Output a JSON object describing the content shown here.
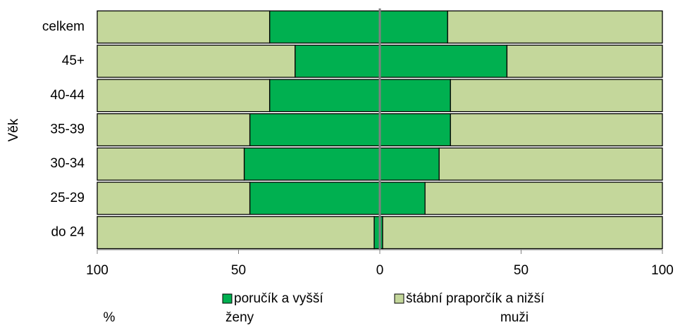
{
  "chart_data": {
    "type": "pyramid",
    "ylabel": "Věk",
    "xlabel": "%",
    "categories": [
      "celkem",
      "45+",
      "40-44",
      "35-39",
      "30-34",
      "25-29",
      "do 24"
    ],
    "legend": [
      {
        "name": "poručík a vyšší",
        "color": "#00b050"
      },
      {
        "name": "štábní praporčík a nižší",
        "color": "#c4d79b"
      }
    ],
    "sides": [
      {
        "name": "ženy",
        "direction": "left",
        "series": [
          {
            "values": [
              39,
              30,
              39,
              46,
              48,
              46,
              2
            ]
          },
          {
            "values": [
              61,
              70,
              61,
              54,
              52,
              54,
              98
            ]
          }
        ]
      },
      {
        "name": "muži",
        "direction": "right",
        "series": [
          {
            "values": [
              24,
              45,
              25,
              25,
              21,
              16,
              1
            ]
          },
          {
            "values": [
              76,
              55,
              75,
              75,
              79,
              84,
              99
            ]
          }
        ]
      }
    ],
    "xlim": [
      -100,
      100
    ],
    "xticks": [
      {
        "value": -100,
        "label": "100"
      },
      {
        "value": -50,
        "label": "50"
      },
      0,
      50,
      100
    ]
  }
}
